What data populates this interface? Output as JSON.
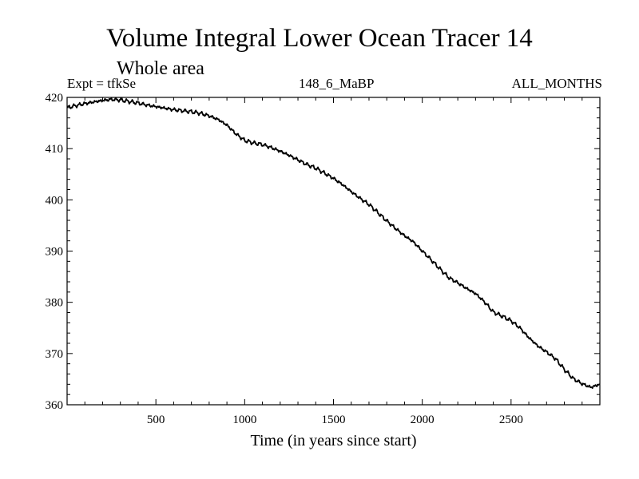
{
  "chart_data": {
    "type": "line",
    "title": "Volume Integral Lower Ocean Tracer 14",
    "subtitle": "Whole area",
    "experiment_label": "Expt = tfkSe",
    "run_label": "148_6_MaBP",
    "months_label": "ALL_MONTHS",
    "xlabel": "Time (in years since start)",
    "ylabel": "",
    "xlim": [
      0,
      3000
    ],
    "ylim": [
      360,
      420
    ],
    "x_ticks": [
      500,
      1000,
      1500,
      2000,
      2500
    ],
    "x_tick_labels": [
      "500",
      "1000",
      "1500",
      "2000",
      "2500"
    ],
    "y_ticks": [
      360,
      370,
      380,
      390,
      400,
      410,
      420
    ],
    "y_tick_labels": [
      "360",
      "370",
      "380",
      "390",
      "400",
      "410",
      "420"
    ],
    "grid": false,
    "series": [
      {
        "name": "tfkSe",
        "color": "#000000",
        "x": [
          0,
          50,
          100,
          150,
          200,
          250,
          300,
          350,
          400,
          450,
          500,
          550,
          600,
          650,
          700,
          750,
          800,
          850,
          900,
          950,
          1000,
          1050,
          1100,
          1150,
          1200,
          1250,
          1300,
          1350,
          1400,
          1450,
          1500,
          1550,
          1600,
          1650,
          1700,
          1750,
          1800,
          1850,
          1900,
          1950,
          2000,
          2050,
          2100,
          2150,
          2200,
          2250,
          2300,
          2350,
          2400,
          2450,
          2500,
          2550,
          2600,
          2650,
          2700,
          2750,
          2800,
          2850,
          2900,
          2950,
          3000
        ],
        "values": [
          418.0,
          418.4,
          418.8,
          419.1,
          419.4,
          419.6,
          419.5,
          419.2,
          418.9,
          418.5,
          418.2,
          417.9,
          417.6,
          417.4,
          417.2,
          416.9,
          416.4,
          415.7,
          414.6,
          412.9,
          411.6,
          411.1,
          410.8,
          410.2,
          409.5,
          408.7,
          407.8,
          406.9,
          406.2,
          405.2,
          404.2,
          403.0,
          401.6,
          400.3,
          399.1,
          397.5,
          395.9,
          394.4,
          393.0,
          391.8,
          390.0,
          388.3,
          386.5,
          384.8,
          383.8,
          382.7,
          381.7,
          380.1,
          378.1,
          377.3,
          376.4,
          375.0,
          373.1,
          371.5,
          370.3,
          369.0,
          366.9,
          365.1,
          364.1,
          363.4,
          364.0
        ]
      }
    ]
  }
}
